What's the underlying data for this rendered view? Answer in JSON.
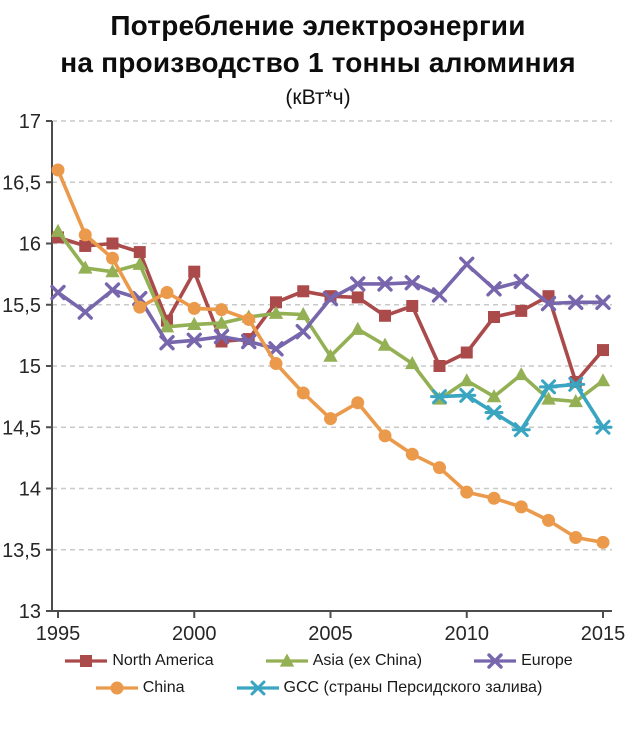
{
  "chart_data": {
    "type": "line",
    "title": "Потребление электроэнергии\nна производство 1 тонны алюминия",
    "subtitle": "(кВт*ч)",
    "xlabel": "",
    "ylabel": "",
    "xlim": [
      1995,
      2015
    ],
    "ylim": [
      13,
      17
    ],
    "x": [
      1995,
      1996,
      1997,
      1998,
      1999,
      2000,
      2001,
      2002,
      2003,
      2004,
      2005,
      2006,
      2007,
      2008,
      2009,
      2010,
      2011,
      2012,
      2013,
      2014,
      2015
    ],
    "x_ticks": [
      "1995",
      "2000",
      "2005",
      "2010",
      "2015"
    ],
    "y_ticks": [
      "17",
      "16,5",
      "16",
      "15,5",
      "15",
      "14,5",
      "14",
      "13,5",
      "13"
    ],
    "grid": "horizontal-dashed",
    "grid_color": "#c9c9c9",
    "axis_color": "#4d4d4d",
    "text_color": "#262626",
    "legend_position": "bottom",
    "legend_rows": [
      [
        0,
        1,
        2
      ],
      [
        3,
        4
      ]
    ],
    "series": [
      {
        "name": "North America",
        "color": "#ab4a4b",
        "marker": "square",
        "values": [
          16.05,
          15.98,
          16.0,
          15.93,
          15.37,
          15.77,
          15.2,
          15.22,
          15.52,
          15.61,
          15.57,
          15.56,
          15.41,
          15.49,
          15.0,
          15.11,
          15.4,
          15.45,
          15.57,
          14.87,
          15.13
        ]
      },
      {
        "name": "Asia (ex China)",
        "color": "#94b054",
        "marker": "triangle",
        "values": [
          16.1,
          15.8,
          15.77,
          15.83,
          15.32,
          15.34,
          15.35,
          15.4,
          15.43,
          15.42,
          15.08,
          15.3,
          15.17,
          15.02,
          14.73,
          14.88,
          14.75,
          14.93,
          14.73,
          14.71,
          14.88
        ]
      },
      {
        "name": "Europe",
        "color": "#7866ad",
        "marker": "x",
        "values": [
          15.6,
          15.44,
          15.62,
          15.55,
          15.19,
          15.21,
          15.24,
          15.2,
          15.14,
          15.28,
          15.55,
          15.67,
          15.67,
          15.68,
          15.58,
          15.83,
          15.63,
          15.69,
          15.51,
          15.52,
          15.52
        ]
      },
      {
        "name": "China",
        "color": "#eb9a4b",
        "marker": "circle",
        "values": [
          16.6,
          16.07,
          15.88,
          15.48,
          15.6,
          15.47,
          15.46,
          15.38,
          15.02,
          14.78,
          14.57,
          14.7,
          14.43,
          14.28,
          14.17,
          13.97,
          13.92,
          13.85,
          13.74,
          13.6,
          13.56
        ]
      },
      {
        "name": "GCC (страны Персидского залива)",
        "color": "#3aa5c1",
        "marker": "asterisk",
        "values": [
          null,
          null,
          null,
          null,
          null,
          null,
          null,
          null,
          null,
          null,
          null,
          null,
          null,
          null,
          14.75,
          14.76,
          14.62,
          14.48,
          14.83,
          14.85,
          14.5
        ]
      }
    ]
  }
}
